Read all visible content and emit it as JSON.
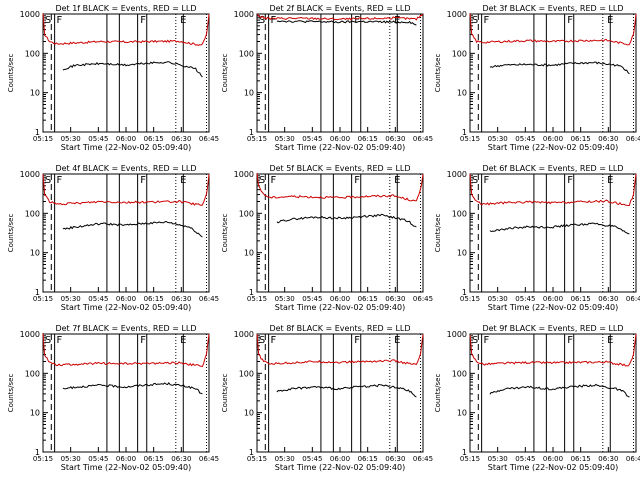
{
  "panels": [
    {
      "title": "Det 1f BLACK = Events, RED = LLD",
      "red": [
        [
          0,
          1000
        ],
        [
          0.01,
          300
        ],
        [
          0.04,
          200
        ],
        [
          0.08,
          175
        ],
        [
          0.2,
          185
        ],
        [
          0.35,
          200
        ],
        [
          0.5,
          195
        ],
        [
          0.65,
          200
        ],
        [
          0.82,
          205
        ],
        [
          0.92,
          170
        ],
        [
          0.96,
          165
        ],
        [
          0.985,
          300
        ],
        [
          1,
          1000
        ]
      ],
      "black": [
        [
          0.12,
          40
        ],
        [
          0.2,
          50
        ],
        [
          0.35,
          55
        ],
        [
          0.5,
          50
        ],
        [
          0.6,
          55
        ],
        [
          0.75,
          60
        ],
        [
          0.88,
          45
        ],
        [
          0.92,
          40
        ],
        [
          0.96,
          25
        ]
      ]
    },
    {
      "title": "Det 2f BLACK = Events, RED = LLD",
      "red": [
        [
          0,
          1000
        ],
        [
          0.01,
          900
        ],
        [
          0.04,
          800
        ],
        [
          0.08,
          760
        ],
        [
          0.2,
          780
        ],
        [
          0.35,
          770
        ],
        [
          0.5,
          740
        ],
        [
          0.65,
          760
        ],
        [
          0.82,
          790
        ],
        [
          0.92,
          760
        ],
        [
          0.96,
          740
        ],
        [
          0.985,
          900
        ],
        [
          1,
          1000
        ]
      ],
      "black": [
        [
          0.12,
          680
        ],
        [
          0.2,
          650
        ],
        [
          0.35,
          640
        ],
        [
          0.5,
          620
        ],
        [
          0.6,
          640
        ],
        [
          0.75,
          630
        ],
        [
          0.88,
          620
        ],
        [
          0.92,
          630
        ],
        [
          0.96,
          520
        ]
      ]
    },
    {
      "title": "Det 3f BLACK = Events, RED = LLD",
      "red": [
        [
          0,
          1000
        ],
        [
          0.01,
          300
        ],
        [
          0.04,
          200
        ],
        [
          0.08,
          190
        ],
        [
          0.2,
          200
        ],
        [
          0.35,
          210
        ],
        [
          0.5,
          200
        ],
        [
          0.65,
          210
        ],
        [
          0.82,
          215
        ],
        [
          0.92,
          180
        ],
        [
          0.96,
          170
        ],
        [
          0.985,
          300
        ],
        [
          1,
          1000
        ]
      ],
      "black": [
        [
          0.12,
          45
        ],
        [
          0.2,
          50
        ],
        [
          0.35,
          52
        ],
        [
          0.5,
          50
        ],
        [
          0.6,
          55
        ],
        [
          0.75,
          58
        ],
        [
          0.88,
          50
        ],
        [
          0.92,
          45
        ],
        [
          0.96,
          30
        ]
      ]
    },
    {
      "title": "Det 4f BLACK = Events, RED = LLD",
      "red": [
        [
          0,
          1000
        ],
        [
          0.01,
          300
        ],
        [
          0.04,
          200
        ],
        [
          0.08,
          170
        ],
        [
          0.2,
          180
        ],
        [
          0.35,
          200
        ],
        [
          0.5,
          190
        ],
        [
          0.65,
          195
        ],
        [
          0.82,
          200
        ],
        [
          0.92,
          170
        ],
        [
          0.96,
          160
        ],
        [
          0.985,
          300
        ],
        [
          1,
          1000
        ]
      ],
      "black": [
        [
          0.12,
          40
        ],
        [
          0.2,
          45
        ],
        [
          0.35,
          55
        ],
        [
          0.5,
          50
        ],
        [
          0.6,
          55
        ],
        [
          0.75,
          60
        ],
        [
          0.88,
          45
        ],
        [
          0.92,
          35
        ],
        [
          0.96,
          25
        ]
      ]
    },
    {
      "title": "Det 5f BLACK = Events, RED = LLD",
      "red": [
        [
          0,
          1000
        ],
        [
          0.01,
          500
        ],
        [
          0.04,
          300
        ],
        [
          0.08,
          250
        ],
        [
          0.2,
          270
        ],
        [
          0.35,
          260
        ],
        [
          0.5,
          250
        ],
        [
          0.65,
          270
        ],
        [
          0.82,
          280
        ],
        [
          0.92,
          220
        ],
        [
          0.96,
          200
        ],
        [
          0.985,
          400
        ],
        [
          1,
          1000
        ]
      ],
      "black": [
        [
          0.12,
          60
        ],
        [
          0.2,
          70
        ],
        [
          0.35,
          80
        ],
        [
          0.5,
          75
        ],
        [
          0.6,
          80
        ],
        [
          0.75,
          90
        ],
        [
          0.88,
          70
        ],
        [
          0.92,
          60
        ],
        [
          0.96,
          45
        ]
      ]
    },
    {
      "title": "Det 6f BLACK = Events, RED = LLD",
      "red": [
        [
          0,
          1000
        ],
        [
          0.01,
          300
        ],
        [
          0.04,
          200
        ],
        [
          0.08,
          170
        ],
        [
          0.2,
          185
        ],
        [
          0.35,
          195
        ],
        [
          0.5,
          185
        ],
        [
          0.65,
          195
        ],
        [
          0.82,
          205
        ],
        [
          0.92,
          170
        ],
        [
          0.96,
          165
        ],
        [
          0.985,
          300
        ],
        [
          1,
          1000
        ]
      ],
      "black": [
        [
          0.12,
          35
        ],
        [
          0.2,
          40
        ],
        [
          0.35,
          45
        ],
        [
          0.5,
          45
        ],
        [
          0.6,
          50
        ],
        [
          0.75,
          55
        ],
        [
          0.88,
          45
        ],
        [
          0.92,
          35
        ],
        [
          0.96,
          30
        ]
      ]
    },
    {
      "title": "Det 7f BLACK = Events, RED = LLD",
      "red": [
        [
          0,
          1000
        ],
        [
          0.01,
          300
        ],
        [
          0.04,
          190
        ],
        [
          0.08,
          165
        ],
        [
          0.2,
          170
        ],
        [
          0.35,
          180
        ],
        [
          0.5,
          175
        ],
        [
          0.65,
          180
        ],
        [
          0.82,
          185
        ],
        [
          0.92,
          160
        ],
        [
          0.96,
          150
        ],
        [
          0.985,
          300
        ],
        [
          1,
          1000
        ]
      ],
      "black": [
        [
          0.12,
          40
        ],
        [
          0.2,
          45
        ],
        [
          0.35,
          50
        ],
        [
          0.5,
          45
        ],
        [
          0.6,
          50
        ],
        [
          0.75,
          55
        ],
        [
          0.88,
          45
        ],
        [
          0.92,
          40
        ],
        [
          0.96,
          30
        ]
      ]
    },
    {
      "title": "Det 8f BLACK = Events, RED = LLD",
      "red": [
        [
          0,
          1000
        ],
        [
          0.01,
          300
        ],
        [
          0.04,
          200
        ],
        [
          0.08,
          175
        ],
        [
          0.2,
          185
        ],
        [
          0.35,
          200
        ],
        [
          0.5,
          190
        ],
        [
          0.65,
          200
        ],
        [
          0.82,
          210
        ],
        [
          0.92,
          175
        ],
        [
          0.96,
          165
        ],
        [
          0.985,
          300
        ],
        [
          1,
          1000
        ]
      ],
      "black": [
        [
          0.12,
          35
        ],
        [
          0.2,
          40
        ],
        [
          0.35,
          45
        ],
        [
          0.5,
          40
        ],
        [
          0.6,
          45
        ],
        [
          0.75,
          50
        ],
        [
          0.88,
          40
        ],
        [
          0.92,
          35
        ],
        [
          0.96,
          25
        ]
      ]
    },
    {
      "title": "Det 9f BLACK = Events, RED = LLD",
      "red": [
        [
          0,
          1000
        ],
        [
          0.01,
          300
        ],
        [
          0.04,
          200
        ],
        [
          0.08,
          170
        ],
        [
          0.2,
          180
        ],
        [
          0.35,
          190
        ],
        [
          0.5,
          185
        ],
        [
          0.65,
          190
        ],
        [
          0.82,
          195
        ],
        [
          0.92,
          165
        ],
        [
          0.96,
          160
        ],
        [
          0.985,
          300
        ],
        [
          1,
          1000
        ]
      ],
      "black": [
        [
          0.12,
          30
        ],
        [
          0.2,
          40
        ],
        [
          0.35,
          45
        ],
        [
          0.5,
          40
        ],
        [
          0.6,
          45
        ],
        [
          0.75,
          50
        ],
        [
          0.88,
          40
        ],
        [
          0.92,
          35
        ],
        [
          0.96,
          25
        ]
      ]
    }
  ],
  "shared": {
    "ylabel": "Counts/sec",
    "xlabel": "Start Time (22-Nov-02 05:09:40)",
    "x_ticks": [
      "05:15",
      "05:30",
      "05:45",
      "06:00",
      "06:15",
      "06:30",
      "06:45"
    ],
    "y_ticks": [
      "1",
      "10",
      "100",
      "1000"
    ],
    "markers": [
      "S",
      "F",
      "F",
      "E"
    ],
    "colors": {
      "events": "#000000",
      "lld": "#cc0000"
    }
  },
  "chart_data": {
    "type": "line",
    "yscale": "log",
    "ylim": [
      1,
      1000
    ]
  }
}
